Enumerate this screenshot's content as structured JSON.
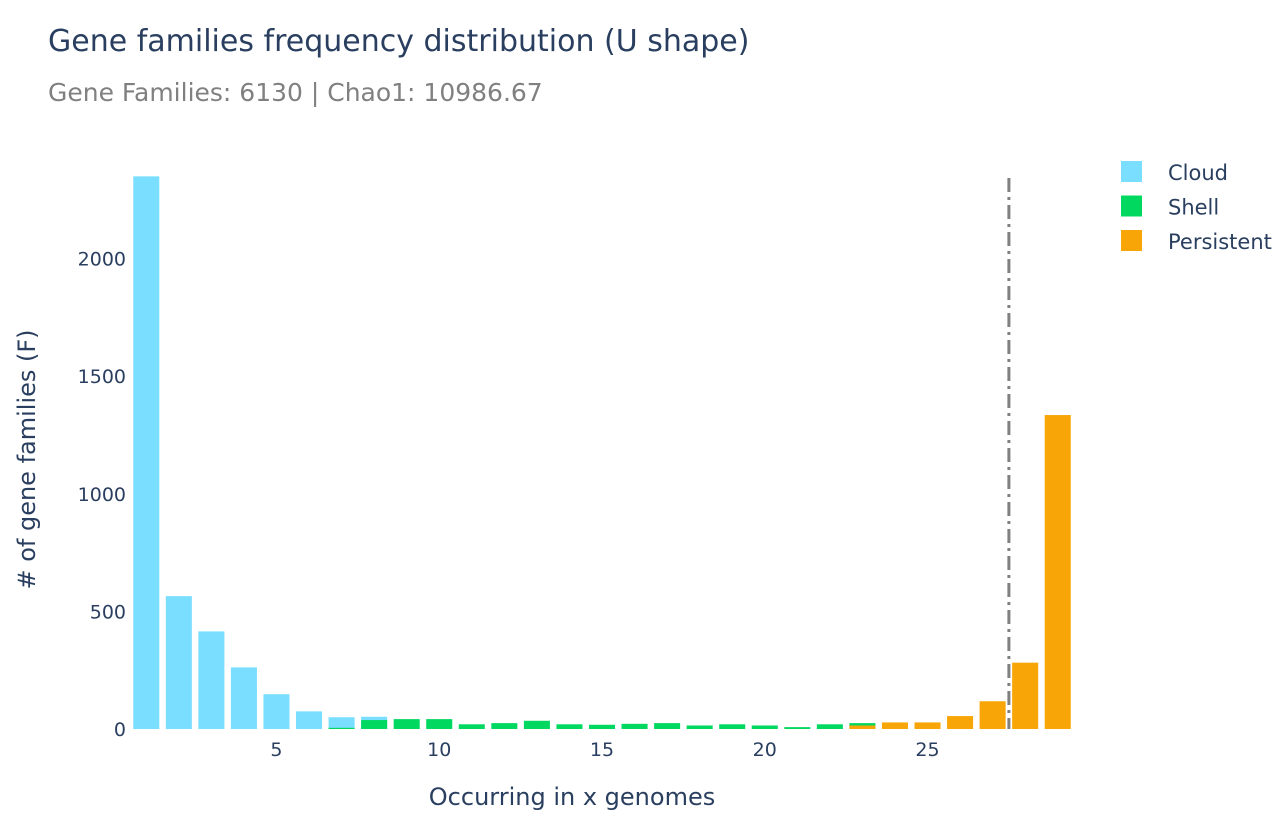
{
  "chart_data": {
    "type": "bar",
    "barmode": "overlay",
    "title": "Gene families frequency distribution (U shape)",
    "subtitle": "Gene Families: 6130 | Chao1: 10986.67",
    "xlabel": "Occurring in x genomes",
    "ylabel": "# of gene families (F)",
    "xlim": [
      0.5,
      29.5
    ],
    "ylim": [
      0,
      2360
    ],
    "xticks": [
      5,
      10,
      15,
      20,
      25
    ],
    "yticks": [
      0,
      500,
      1000,
      1500,
      2000
    ],
    "grid": false,
    "legend_position": "top-right",
    "threshold_line": {
      "x": 27.5,
      "style": "dashdot",
      "color": "#808080"
    },
    "series": [
      {
        "name": "Cloud",
        "color": "#79DEFF",
        "x": [
          1,
          2,
          3,
          4,
          5,
          6,
          7,
          8,
          22
        ],
        "values": [
          2350,
          565,
          415,
          262,
          148,
          75,
          50,
          52,
          5
        ]
      },
      {
        "name": "Shell",
        "color": "#00D860",
        "x": [
          7,
          8,
          9,
          10,
          11,
          12,
          13,
          14,
          15,
          16,
          17,
          18,
          19,
          20,
          21,
          22,
          23
        ],
        "values": [
          5,
          38,
          42,
          42,
          20,
          25,
          35,
          20,
          18,
          22,
          25,
          15,
          20,
          15,
          8,
          20,
          25
        ]
      },
      {
        "name": "Persistent",
        "color": "#F7A507",
        "x": [
          23,
          24,
          25,
          26,
          27,
          28,
          29
        ],
        "values": [
          15,
          28,
          28,
          55,
          118,
          282,
          1335
        ]
      }
    ]
  }
}
